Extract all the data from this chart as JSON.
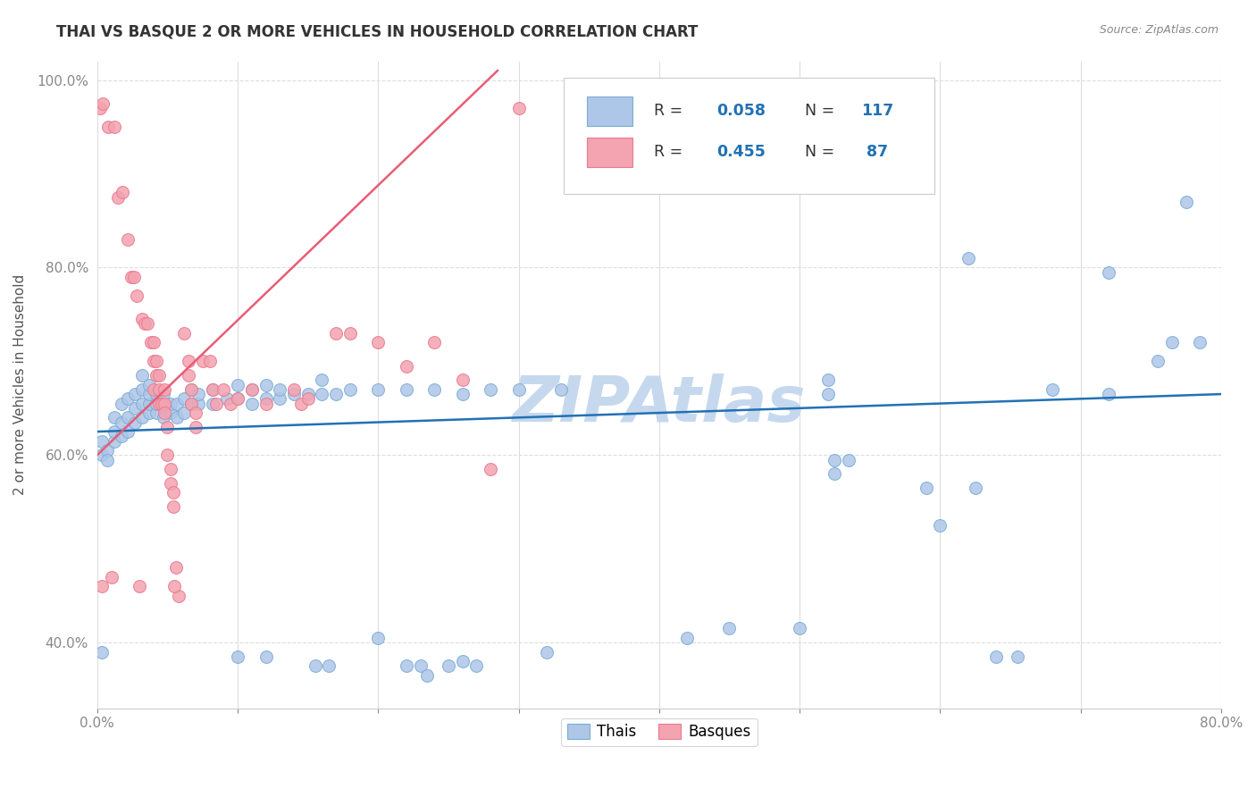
{
  "title": "THAI VS BASQUE 2 OR MORE VEHICLES IN HOUSEHOLD CORRELATION CHART",
  "source": "Source: ZipAtlas.com",
  "ylabel": "2 or more Vehicles in Household",
  "xmin": 0.0,
  "xmax": 0.8,
  "ymin": 0.33,
  "ymax": 1.02,
  "xtick_positions": [
    0.0,
    0.1,
    0.2,
    0.3,
    0.4,
    0.5,
    0.6,
    0.7,
    0.8
  ],
  "xticklabels": [
    "0.0%",
    "",
    "",
    "",
    "",
    "",
    "",
    "",
    "80.0%"
  ],
  "ytick_positions": [
    0.4,
    0.6,
    0.8,
    1.0
  ],
  "yticklabels": [
    "40.0%",
    "60.0%",
    "80.0%",
    "100.0%"
  ],
  "thai_face_color": "#aec6e8",
  "thai_edge_color": "#7aadd4",
  "basque_face_color": "#f4a3b0",
  "basque_edge_color": "#e87a8f",
  "thai_line_color": "#2271b5",
  "basque_line_color": "#e85d75",
  "watermark": "ZIPAtlas",
  "watermark_color": "#c5d8ee",
  "grid_color": "#dddddd",
  "thai_line_x0": 0.0,
  "thai_line_y0": 0.625,
  "thai_line_x1": 0.8,
  "thai_line_y1": 0.665,
  "basque_line_x0": 0.0,
  "basque_line_y0": 0.6,
  "basque_line_x1": 0.285,
  "basque_line_y1": 1.01,
  "thai_scatter": [
    [
      0.003,
      0.6
    ],
    [
      0.003,
      0.615
    ],
    [
      0.007,
      0.605
    ],
    [
      0.007,
      0.595
    ],
    [
      0.012,
      0.615
    ],
    [
      0.012,
      0.625
    ],
    [
      0.012,
      0.64
    ],
    [
      0.017,
      0.62
    ],
    [
      0.017,
      0.635
    ],
    [
      0.017,
      0.655
    ],
    [
      0.022,
      0.625
    ],
    [
      0.022,
      0.64
    ],
    [
      0.022,
      0.66
    ],
    [
      0.027,
      0.635
    ],
    [
      0.027,
      0.65
    ],
    [
      0.027,
      0.665
    ],
    [
      0.032,
      0.64
    ],
    [
      0.032,
      0.655
    ],
    [
      0.032,
      0.67
    ],
    [
      0.032,
      0.685
    ],
    [
      0.037,
      0.645
    ],
    [
      0.037,
      0.655
    ],
    [
      0.037,
      0.665
    ],
    [
      0.037,
      0.675
    ],
    [
      0.042,
      0.645
    ],
    [
      0.042,
      0.655
    ],
    [
      0.042,
      0.665
    ],
    [
      0.047,
      0.64
    ],
    [
      0.047,
      0.655
    ],
    [
      0.047,
      0.665
    ],
    [
      0.052,
      0.645
    ],
    [
      0.052,
      0.655
    ],
    [
      0.057,
      0.64
    ],
    [
      0.057,
      0.655
    ],
    [
      0.062,
      0.645
    ],
    [
      0.062,
      0.66
    ],
    [
      0.067,
      0.655
    ],
    [
      0.067,
      0.67
    ],
    [
      0.072,
      0.655
    ],
    [
      0.072,
      0.665
    ],
    [
      0.082,
      0.655
    ],
    [
      0.082,
      0.67
    ],
    [
      0.092,
      0.66
    ],
    [
      0.1,
      0.66
    ],
    [
      0.1,
      0.675
    ],
    [
      0.11,
      0.655
    ],
    [
      0.11,
      0.67
    ],
    [
      0.12,
      0.66
    ],
    [
      0.12,
      0.675
    ],
    [
      0.13,
      0.66
    ],
    [
      0.13,
      0.67
    ],
    [
      0.14,
      0.665
    ],
    [
      0.15,
      0.665
    ],
    [
      0.16,
      0.665
    ],
    [
      0.16,
      0.68
    ],
    [
      0.17,
      0.665
    ],
    [
      0.18,
      0.67
    ],
    [
      0.2,
      0.67
    ],
    [
      0.22,
      0.67
    ],
    [
      0.24,
      0.67
    ],
    [
      0.26,
      0.665
    ],
    [
      0.28,
      0.67
    ],
    [
      0.3,
      0.67
    ],
    [
      0.33,
      0.67
    ],
    [
      0.003,
      0.39
    ],
    [
      0.1,
      0.385
    ],
    [
      0.12,
      0.385
    ],
    [
      0.155,
      0.375
    ],
    [
      0.165,
      0.375
    ],
    [
      0.2,
      0.405
    ],
    [
      0.22,
      0.375
    ],
    [
      0.23,
      0.375
    ],
    [
      0.235,
      0.365
    ],
    [
      0.25,
      0.375
    ],
    [
      0.26,
      0.38
    ],
    [
      0.27,
      0.375
    ],
    [
      0.32,
      0.39
    ],
    [
      0.42,
      0.405
    ],
    [
      0.45,
      0.415
    ],
    [
      0.5,
      0.415
    ],
    [
      0.52,
      0.68
    ],
    [
      0.52,
      0.665
    ],
    [
      0.525,
      0.595
    ],
    [
      0.525,
      0.58
    ],
    [
      0.535,
      0.595
    ],
    [
      0.59,
      0.565
    ],
    [
      0.6,
      0.525
    ],
    [
      0.62,
      0.81
    ],
    [
      0.625,
      0.565
    ],
    [
      0.64,
      0.385
    ],
    [
      0.655,
      0.385
    ],
    [
      0.68,
      0.67
    ],
    [
      0.72,
      0.795
    ],
    [
      0.72,
      0.665
    ],
    [
      0.755,
      0.7
    ],
    [
      0.765,
      0.72
    ],
    [
      0.775,
      0.87
    ],
    [
      0.785,
      0.72
    ]
  ],
  "basque_scatter": [
    [
      0.002,
      0.97
    ],
    [
      0.004,
      0.975
    ],
    [
      0.008,
      0.95
    ],
    [
      0.012,
      0.95
    ],
    [
      0.015,
      0.875
    ],
    [
      0.018,
      0.88
    ],
    [
      0.022,
      0.83
    ],
    [
      0.024,
      0.79
    ],
    [
      0.026,
      0.79
    ],
    [
      0.028,
      0.77
    ],
    [
      0.032,
      0.745
    ],
    [
      0.034,
      0.74
    ],
    [
      0.036,
      0.74
    ],
    [
      0.038,
      0.72
    ],
    [
      0.04,
      0.72
    ],
    [
      0.04,
      0.7
    ],
    [
      0.042,
      0.7
    ],
    [
      0.042,
      0.685
    ],
    [
      0.04,
      0.67
    ],
    [
      0.044,
      0.685
    ],
    [
      0.044,
      0.67
    ],
    [
      0.044,
      0.655
    ],
    [
      0.046,
      0.655
    ],
    [
      0.048,
      0.67
    ],
    [
      0.048,
      0.655
    ],
    [
      0.048,
      0.645
    ],
    [
      0.05,
      0.63
    ],
    [
      0.05,
      0.6
    ],
    [
      0.052,
      0.585
    ],
    [
      0.052,
      0.57
    ],
    [
      0.054,
      0.56
    ],
    [
      0.054,
      0.545
    ],
    [
      0.056,
      0.48
    ],
    [
      0.058,
      0.45
    ],
    [
      0.062,
      0.73
    ],
    [
      0.065,
      0.7
    ],
    [
      0.065,
      0.685
    ],
    [
      0.067,
      0.67
    ],
    [
      0.067,
      0.655
    ],
    [
      0.07,
      0.645
    ],
    [
      0.07,
      0.63
    ],
    [
      0.075,
      0.7
    ],
    [
      0.08,
      0.7
    ],
    [
      0.082,
      0.67
    ],
    [
      0.085,
      0.655
    ],
    [
      0.09,
      0.67
    ],
    [
      0.095,
      0.655
    ],
    [
      0.1,
      0.66
    ],
    [
      0.11,
      0.67
    ],
    [
      0.12,
      0.655
    ],
    [
      0.14,
      0.67
    ],
    [
      0.145,
      0.655
    ],
    [
      0.15,
      0.66
    ],
    [
      0.17,
      0.73
    ],
    [
      0.18,
      0.73
    ],
    [
      0.2,
      0.72
    ],
    [
      0.22,
      0.695
    ],
    [
      0.24,
      0.72
    ],
    [
      0.26,
      0.68
    ],
    [
      0.28,
      0.585
    ],
    [
      0.3,
      0.97
    ],
    [
      0.003,
      0.46
    ],
    [
      0.01,
      0.47
    ],
    [
      0.03,
      0.46
    ],
    [
      0.055,
      0.46
    ]
  ]
}
